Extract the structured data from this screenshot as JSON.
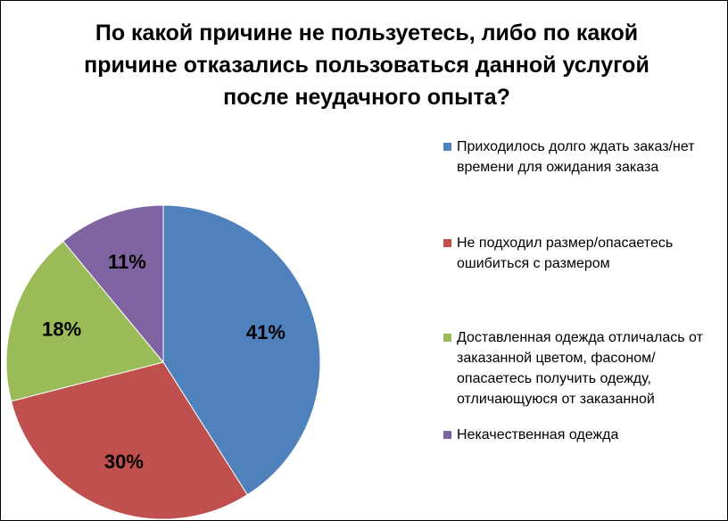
{
  "chart_data": {
    "type": "pie",
    "title_lines": [
      "По какой причине не пользуетесь, либо по какой",
      "причине отказались пользоваться  данной услугой",
      "после неудачного опыта?"
    ],
    "legend_position": "right",
    "slices": [
      {
        "label": "Приходилось долго ждать заказ/нет времени для ожидания заказа",
        "value": 41,
        "value_label": "41%",
        "color": "#4F81BD"
      },
      {
        "label": "Не подходил размер/опасаетесь ошибиться с размером",
        "value": 30,
        "value_label": "30%",
        "color": "#C0504D"
      },
      {
        "label": "Доставленная одежда отличалась от заказанной цветом, фасоном/опасаетесь получить одежду, отличающуюся от заказанной",
        "value": 18,
        "value_label": "18%",
        "color": "#9BBB59"
      },
      {
        "label": "Некачественная одежда",
        "value": 11,
        "value_label": "11%",
        "color": "#8064A2"
      }
    ]
  }
}
